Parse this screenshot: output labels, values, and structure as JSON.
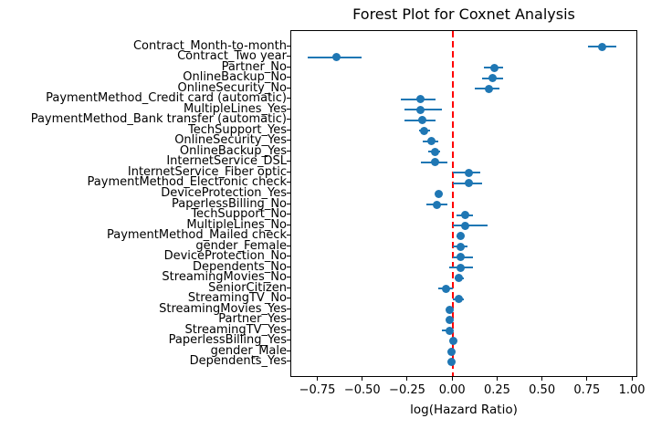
{
  "chart_data": {
    "type": "scatter",
    "subtype": "forest-plot-errorbar",
    "title": "Forest Plot for Coxnet Analysis",
    "xlabel": "log(Hazard Ratio)",
    "xlim": [
      -0.9,
      1.03
    ],
    "grid": false,
    "legend": "none",
    "marker_color": "#1f77b4",
    "zero_line": {
      "x": 0,
      "color": "#ff0000",
      "style": "dashed"
    },
    "xticks": [
      {
        "value": -0.75,
        "label": "−0.75"
      },
      {
        "value": -0.5,
        "label": "−0.50"
      },
      {
        "value": -0.25,
        "label": "−0.25"
      },
      {
        "value": 0.0,
        "label": "0.00"
      },
      {
        "value": 0.25,
        "label": "0.25"
      },
      {
        "value": 0.5,
        "label": "0.50"
      },
      {
        "value": 0.75,
        "label": "0.75"
      },
      {
        "value": 1.0,
        "label": "1.00"
      }
    ],
    "points": [
      {
        "label": "Contract_Month-to-month",
        "value": 0.83,
        "lo": 0.75,
        "hi": 0.91
      },
      {
        "label": "Contract_Two year",
        "value": -0.65,
        "lo": -0.81,
        "hi": -0.51
      },
      {
        "label": "Partner_No",
        "value": 0.23,
        "lo": 0.17,
        "hi": 0.28
      },
      {
        "label": "OnlineBackup_No",
        "value": 0.22,
        "lo": 0.16,
        "hi": 0.28
      },
      {
        "label": "OnlineSecurity_No",
        "value": 0.2,
        "lo": 0.12,
        "hi": 0.26
      },
      {
        "label": "PaymentMethod_Credit card (automatic)",
        "value": -0.18,
        "lo": -0.29,
        "hi": -0.1
      },
      {
        "label": "MultipleLines_Yes",
        "value": -0.18,
        "lo": -0.27,
        "hi": -0.06
      },
      {
        "label": "PaymentMethod_Bank transfer (automatic)",
        "value": -0.17,
        "lo": -0.27,
        "hi": -0.1
      },
      {
        "label": "TechSupport_Yes",
        "value": -0.16,
        "lo": -0.19,
        "hi": -0.13
      },
      {
        "label": "OnlineSecurity_Yes",
        "value": -0.12,
        "lo": -0.17,
        "hi": -0.08
      },
      {
        "label": "OnlineBackup_Yes",
        "value": -0.1,
        "lo": -0.14,
        "hi": -0.07
      },
      {
        "label": "InternetService_DSL",
        "value": -0.1,
        "lo": -0.18,
        "hi": -0.03
      },
      {
        "label": "InternetService_Fiber optic",
        "value": 0.09,
        "lo": 0.0,
        "hi": 0.15
      },
      {
        "label": "PaymentMethod_Electronic check",
        "value": 0.09,
        "lo": 0.0,
        "hi": 0.16
      },
      {
        "label": "DeviceProtection_Yes",
        "value": -0.08,
        "lo": -0.1,
        "hi": -0.06
      },
      {
        "label": "PaperlessBilling_No",
        "value": -0.09,
        "lo": -0.15,
        "hi": -0.03
      },
      {
        "label": "TechSupport_No",
        "value": 0.07,
        "lo": 0.02,
        "hi": 0.11
      },
      {
        "label": "MultipleLines_No",
        "value": 0.07,
        "lo": 0.0,
        "hi": 0.19
      },
      {
        "label": "PaymentMethod_Mailed check",
        "value": 0.04,
        "lo": 0.02,
        "hi": 0.06
      },
      {
        "label": "gender_Female",
        "value": 0.04,
        "lo": 0.0,
        "hi": 0.08
      },
      {
        "label": "DeviceProtection_No",
        "value": 0.04,
        "lo": 0.0,
        "hi": 0.11
      },
      {
        "label": "Dependents_No",
        "value": 0.04,
        "lo": -0.02,
        "hi": 0.11
      },
      {
        "label": "StreamingMovies_No",
        "value": 0.03,
        "lo": 0.01,
        "hi": 0.06
      },
      {
        "label": "SeniorCitizen",
        "value": -0.04,
        "lo": -0.08,
        "hi": 0.0
      },
      {
        "label": "StreamingTV_No",
        "value": 0.03,
        "lo": 0.0,
        "hi": 0.06
      },
      {
        "label": "StreamingMovies_Yes",
        "value": -0.02,
        "lo": -0.03,
        "hi": -0.01
      },
      {
        "label": "Partner_Yes",
        "value": -0.02,
        "lo": -0.03,
        "hi": -0.01
      },
      {
        "label": "StreamingTV_Yes",
        "value": -0.02,
        "lo": -0.06,
        "hi": -0.01
      },
      {
        "label": "PaperlessBilling_Yes",
        "value": 0.0,
        "lo": 0.0,
        "hi": 0.01
      },
      {
        "label": "gender_Male",
        "value": -0.01,
        "lo": -0.02,
        "hi": 0.0
      },
      {
        "label": "Dependents_Yes",
        "value": -0.01,
        "lo": -0.02,
        "hi": 0.0
      }
    ]
  }
}
